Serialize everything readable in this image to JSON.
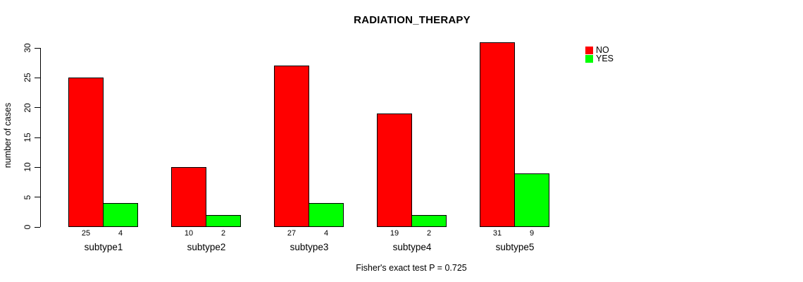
{
  "title": "RADIATION_THERAPY",
  "ylabel": "number of cases",
  "annotation": "Fisher's exact test P = 0.725",
  "legend": [
    {
      "label": "NO",
      "color": "#ff0000"
    },
    {
      "label": "YES",
      "color": "#00ff00"
    }
  ],
  "colors": {
    "no": "#ff0000",
    "yes": "#00ff00",
    "axis": "#000000",
    "background": "#ffffff"
  },
  "chart_data": {
    "type": "bar",
    "title": "RADIATION_THERAPY",
    "xlabel": "",
    "ylabel": "number of cases",
    "categories": [
      "subtype1",
      "subtype2",
      "subtype3",
      "subtype4",
      "subtype5"
    ],
    "series": [
      {
        "name": "NO",
        "color": "#ff0000",
        "values": [
          25,
          10,
          27,
          19,
          31
        ]
      },
      {
        "name": "YES",
        "color": "#00ff00",
        "values": [
          4,
          2,
          4,
          2,
          9
        ]
      }
    ],
    "bar_value_labels": true,
    "ylim": [
      0,
      30
    ],
    "yticks": [
      0,
      5,
      10,
      15,
      20,
      25,
      30
    ],
    "grid": false,
    "legend_position": "top-right",
    "annotation": "Fisher's exact test P = 0.725"
  }
}
